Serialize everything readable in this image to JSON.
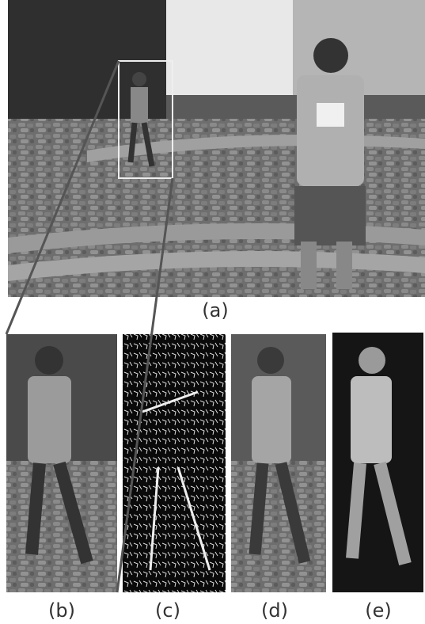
{
  "figure": {
    "panels": [
      {
        "label": "(a)"
      },
      {
        "label": "(b)"
      },
      {
        "label": "(c)"
      },
      {
        "label": "(d)"
      },
      {
        "label": "(e)"
      }
    ]
  }
}
